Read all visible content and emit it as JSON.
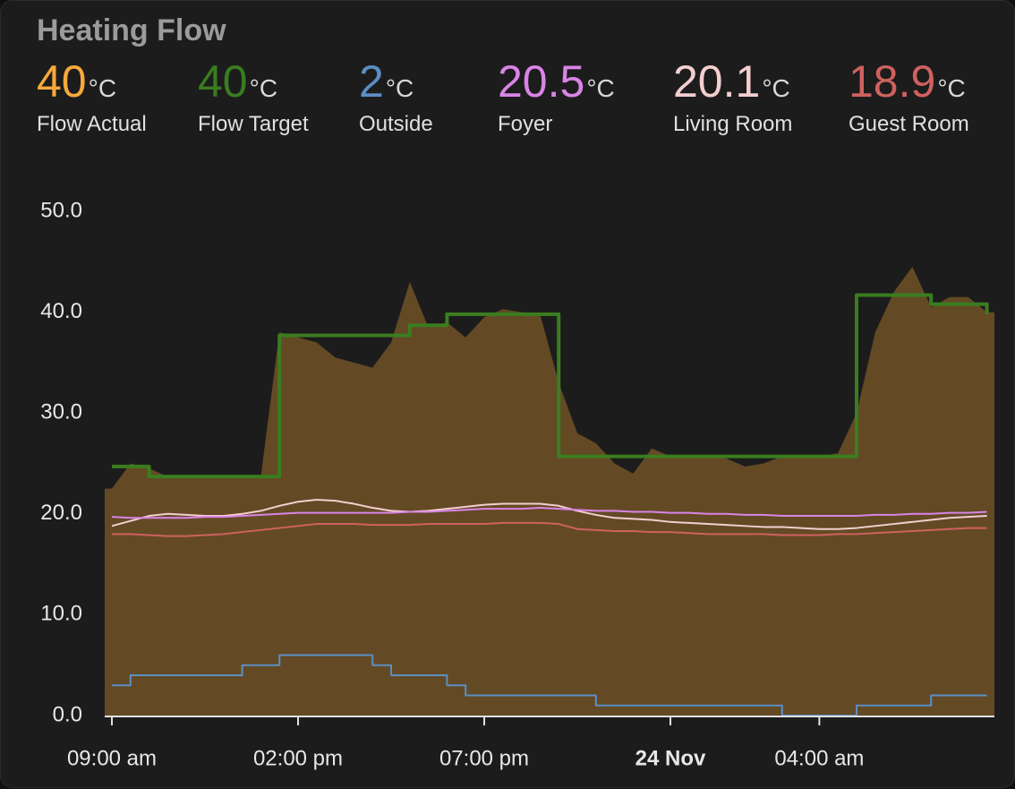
{
  "title": "Heating Flow",
  "unit": "°C",
  "chart_data": {
    "type": "line",
    "x": [
      "09:00",
      "09:30",
      "10:00",
      "10:30",
      "11:00",
      "11:30",
      "12:00",
      "12:30",
      "13:00",
      "13:30",
      "14:00",
      "14:30",
      "15:00",
      "15:30",
      "16:00",
      "16:30",
      "17:00",
      "17:30",
      "18:00",
      "18:30",
      "19:00",
      "19:30",
      "20:00",
      "20:30",
      "21:00",
      "21:30",
      "22:00",
      "22:30",
      "23:00",
      "23:30",
      "00:00",
      "00:30",
      "01:00",
      "01:30",
      "02:00",
      "02:30",
      "03:00",
      "03:30",
      "04:00",
      "04:30",
      "05:00",
      "05:30",
      "06:00",
      "06:30",
      "07:00",
      "07:30",
      "08:00",
      "08:30"
    ],
    "ylim": [
      0,
      50
    ],
    "yticks": [
      {
        "value": 0,
        "label": "0.0"
      },
      {
        "value": 10,
        "label": "10.0"
      },
      {
        "value": 20,
        "label": "20.0"
      },
      {
        "value": 30,
        "label": "30.0"
      },
      {
        "value": 40,
        "label": "40.0"
      },
      {
        "value": 50,
        "label": "50.0"
      }
    ],
    "xticks": [
      {
        "value": "09:00",
        "label": "09:00 am"
      },
      {
        "value": "14:00",
        "label": "02:00 pm"
      },
      {
        "value": "19:00",
        "label": "07:00 pm"
      },
      {
        "value": "00:00",
        "label": "24 Nov",
        "bold": true
      },
      {
        "value": "04:00",
        "label": "04:00 am"
      }
    ],
    "grid": false,
    "series": [
      {
        "name": "Flow Actual",
        "color": "#f7a93b",
        "current": 40,
        "fill": true,
        "step": false,
        "values": [
          22.5,
          25,
          24.5,
          23.7,
          23.7,
          23.7,
          23.7,
          23.7,
          23.7,
          38,
          37.5,
          37,
          35.5,
          35,
          34.5,
          37,
          43,
          38.5,
          39,
          37.5,
          39.5,
          40.3,
          40,
          39.8,
          33,
          28,
          27,
          25,
          24,
          26.5,
          25.7,
          25.7,
          25.7,
          25.5,
          24.7,
          25,
          25.7,
          25.7,
          25.7,
          26,
          30,
          38,
          42,
          44.5,
          40.5,
          41.5,
          41.5,
          40
        ]
      },
      {
        "name": "Flow Target",
        "color": "#3a7d1f",
        "current": 40,
        "fill": false,
        "step": true,
        "values": [
          24.7,
          24.7,
          23.7,
          23.7,
          23.7,
          23.7,
          23.7,
          23.7,
          23.7,
          37.7,
          37.7,
          37.7,
          37.7,
          37.7,
          37.7,
          37.7,
          38.7,
          38.7,
          39.8,
          39.8,
          39.8,
          39.8,
          39.8,
          39.8,
          25.7,
          25.7,
          25.7,
          25.7,
          25.7,
          25.7,
          25.7,
          25.7,
          25.7,
          25.7,
          25.7,
          25.7,
          25.7,
          25.7,
          25.7,
          25.7,
          41.7,
          41.7,
          41.7,
          41.7,
          40.8,
          40.8,
          40.8,
          39.8
        ]
      },
      {
        "name": "Outside",
        "color": "#5b8ec4",
        "current": 2,
        "fill": false,
        "step": true,
        "values": [
          3,
          4,
          4,
          4,
          4,
          4,
          4,
          5,
          5,
          6,
          6,
          6,
          6,
          6,
          5,
          4,
          4,
          4,
          3,
          2,
          2,
          2,
          2,
          2,
          2,
          2,
          1,
          1,
          1,
          1,
          1,
          1,
          1,
          1,
          1,
          1,
          0,
          0,
          0,
          0,
          1,
          1,
          1,
          1,
          2,
          2,
          2,
          2
        ]
      },
      {
        "name": "Foyer",
        "color": "#d984e6",
        "current": 20.5,
        "fill": false,
        "step": false,
        "values": [
          19.7,
          19.6,
          19.6,
          19.6,
          19.6,
          19.7,
          19.7,
          19.8,
          19.9,
          20,
          20.1,
          20.1,
          20.1,
          20.1,
          20.1,
          20.1,
          20.2,
          20.2,
          20.3,
          20.4,
          20.5,
          20.5,
          20.5,
          20.6,
          20.5,
          20.4,
          20.3,
          20.3,
          20.2,
          20.2,
          20.1,
          20.1,
          20,
          20,
          19.9,
          19.9,
          19.8,
          19.8,
          19.8,
          19.8,
          19.8,
          19.9,
          19.9,
          20,
          20,
          20.1,
          20.1,
          20.2
        ]
      },
      {
        "name": "Living Room",
        "color": "#f4cfd0",
        "current": 20.1,
        "fill": false,
        "step": false,
        "values": [
          18.8,
          19.3,
          19.8,
          20,
          19.9,
          19.8,
          19.8,
          20,
          20.3,
          20.8,
          21.2,
          21.4,
          21.3,
          21,
          20.6,
          20.3,
          20.2,
          20.3,
          20.5,
          20.7,
          20.9,
          21,
          21,
          21,
          20.8,
          20.3,
          19.9,
          19.6,
          19.5,
          19.4,
          19.2,
          19.1,
          19,
          18.9,
          18.8,
          18.7,
          18.7,
          18.6,
          18.5,
          18.5,
          18.6,
          18.8,
          19,
          19.2,
          19.4,
          19.6,
          19.7,
          19.8
        ]
      },
      {
        "name": "Guest Room",
        "color": "#cf615f",
        "current": 18.9,
        "fill": false,
        "step": false,
        "values": [
          18,
          18,
          17.9,
          17.8,
          17.8,
          17.9,
          18,
          18.2,
          18.4,
          18.6,
          18.8,
          19,
          19,
          19,
          18.9,
          18.9,
          18.9,
          19,
          19,
          19,
          19,
          19.1,
          19.1,
          19.1,
          19,
          18.5,
          18.4,
          18.3,
          18.3,
          18.2,
          18.2,
          18.1,
          18,
          18,
          18,
          18,
          17.9,
          17.9,
          17.9,
          18,
          18,
          18.1,
          18.2,
          18.3,
          18.4,
          18.5,
          18.6,
          18.6
        ]
      }
    ]
  }
}
